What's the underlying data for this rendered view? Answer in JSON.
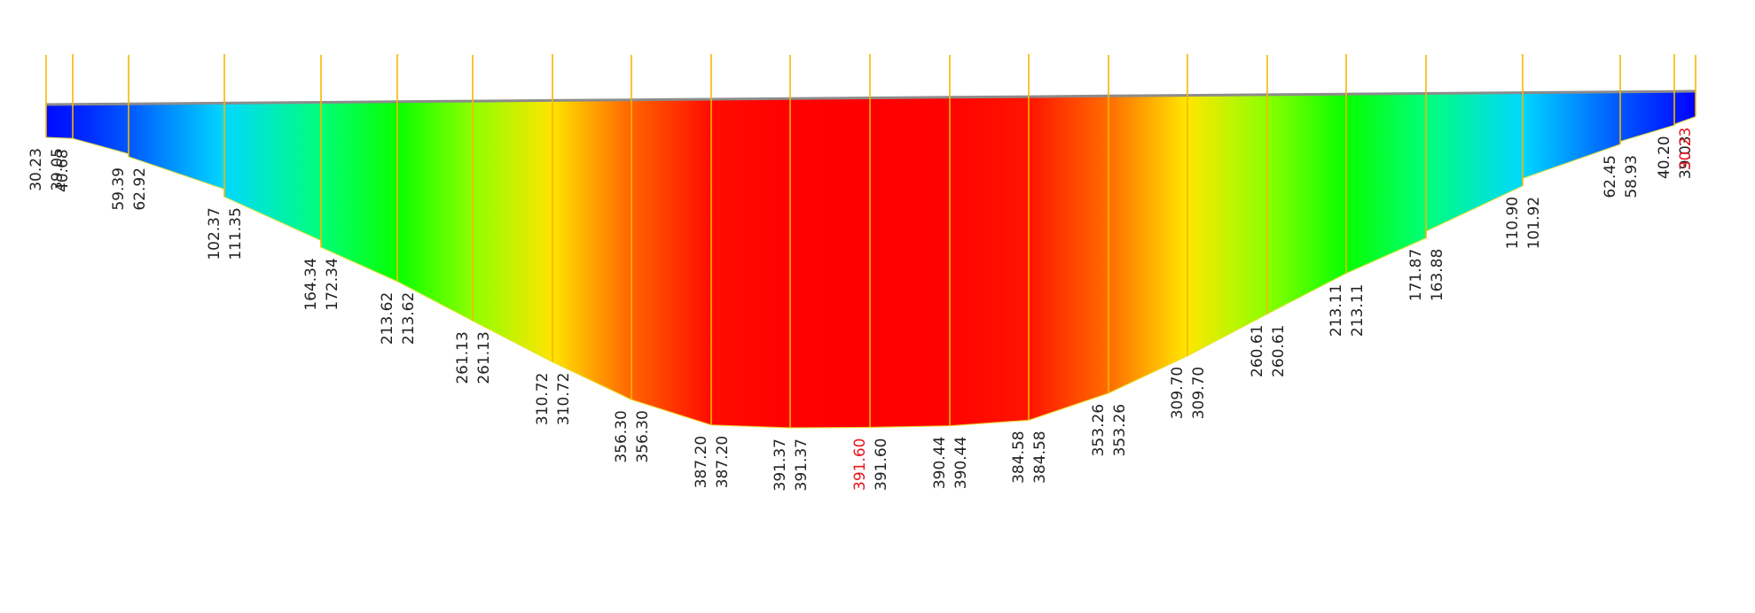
{
  "chart_data": {
    "type": "area",
    "stations": [
      {
        "value_left": 30.23,
        "value_right": 39.05
      },
      {
        "value_left": 40.68,
        "value_right": 40.68
      },
      {
        "value_left": 59.39,
        "value_right": 62.92
      },
      {
        "value_left": 102.37,
        "value_right": 111.35
      },
      {
        "value_left": 164.34,
        "value_right": 172.34
      },
      {
        "value_left": 213.62,
        "value_right": 213.62
      },
      {
        "value_left": 261.13,
        "value_right": 261.13
      },
      {
        "value_left": 310.72,
        "value_right": 310.72
      },
      {
        "value_left": 356.3,
        "value_right": 356.3
      },
      {
        "value_left": 387.2,
        "value_right": 387.2
      },
      {
        "value_left": 391.37,
        "value_right": 391.37
      },
      {
        "value_left": 391.6,
        "value_right": 391.6
      },
      {
        "value_left": 390.44,
        "value_right": 390.44
      },
      {
        "value_left": 384.58,
        "value_right": 384.58
      },
      {
        "value_left": 353.26,
        "value_right": 353.26
      },
      {
        "value_left": 309.7,
        "value_right": 309.7
      },
      {
        "value_left": 260.61,
        "value_right": 260.61
      },
      {
        "value_left": 213.11,
        "value_right": 213.11
      },
      {
        "value_left": 171.87,
        "value_right": 163.88
      },
      {
        "value_left": 110.9,
        "value_right": 101.92
      },
      {
        "value_left": 62.45,
        "value_right": 58.93
      },
      {
        "value_left": 40.2,
        "value_right": 39.03
      },
      {
        "value_left": 30.23,
        "value_right": 30.23
      }
    ],
    "labels": [
      {
        "text": "30.23",
        "station": 0,
        "highlight": false
      },
      {
        "text": "39.05",
        "station": 0,
        "highlight": false
      },
      {
        "text": "40.68",
        "station": 1,
        "highlight": false
      },
      {
        "text": "59.39",
        "station": 2,
        "highlight": false
      },
      {
        "text": "62.92",
        "station": 2,
        "highlight": false
      },
      {
        "text": "102.37",
        "station": 3,
        "highlight": false
      },
      {
        "text": "111.35",
        "station": 3,
        "highlight": false
      },
      {
        "text": "164.34",
        "station": 4,
        "highlight": false
      },
      {
        "text": "172.34",
        "station": 4,
        "highlight": false
      },
      {
        "text": "213.62",
        "station": 5,
        "highlight": false
      },
      {
        "text": "213.62",
        "station": 5,
        "highlight": false
      },
      {
        "text": "261.13",
        "station": 6,
        "highlight": false
      },
      {
        "text": "261.13",
        "station": 6,
        "highlight": false
      },
      {
        "text": "310.72",
        "station": 7,
        "highlight": false
      },
      {
        "text": "310.72",
        "station": 7,
        "highlight": false
      },
      {
        "text": "356.30",
        "station": 8,
        "highlight": false
      },
      {
        "text": "356.30",
        "station": 8,
        "highlight": false
      },
      {
        "text": "387.20",
        "station": 9,
        "highlight": false
      },
      {
        "text": "387.20",
        "station": 9,
        "highlight": false
      },
      {
        "text": "391.37",
        "station": 10,
        "highlight": false
      },
      {
        "text": "391.37",
        "station": 10,
        "highlight": false
      },
      {
        "text": "391.60",
        "station": 11,
        "highlight": true
      },
      {
        "text": "391.60",
        "station": 11,
        "highlight": false
      },
      {
        "text": "390.44",
        "station": 12,
        "highlight": false
      },
      {
        "text": "390.44",
        "station": 12,
        "highlight": false
      },
      {
        "text": "384.58",
        "station": 13,
        "highlight": false
      },
      {
        "text": "384.58",
        "station": 13,
        "highlight": false
      },
      {
        "text": "353.26",
        "station": 14,
        "highlight": false
      },
      {
        "text": "353.26",
        "station": 14,
        "highlight": false
      },
      {
        "text": "309.70",
        "station": 15,
        "highlight": false
      },
      {
        "text": "309.70",
        "station": 15,
        "highlight": false
      },
      {
        "text": "260.61",
        "station": 16,
        "highlight": false
      },
      {
        "text": "260.61",
        "station": 16,
        "highlight": false
      },
      {
        "text": "213.11",
        "station": 17,
        "highlight": false
      },
      {
        "text": "213.11",
        "station": 17,
        "highlight": false
      },
      {
        "text": "171.87",
        "station": 18,
        "highlight": false
      },
      {
        "text": "163.88",
        "station": 18,
        "highlight": false
      },
      {
        "text": "110.90",
        "station": 19,
        "highlight": false
      },
      {
        "text": "101.92",
        "station": 19,
        "highlight": false
      },
      {
        "text": "62.45",
        "station": 20,
        "highlight": false
      },
      {
        "text": "58.93",
        "station": 20,
        "highlight": false
      },
      {
        "text": "40.20",
        "station": 21,
        "highlight": false
      },
      {
        "text": "39.03",
        "station": 21,
        "highlight": false
      },
      {
        "text": "30.23",
        "station": 22,
        "highlight": true
      }
    ],
    "max_value": 391.6,
    "min_value": 30.23,
    "colormap": [
      "#0000ff",
      "#00ffff",
      "#00ff00",
      "#ffff00",
      "#ff0000"
    ],
    "grid": false,
    "legend": "none"
  }
}
